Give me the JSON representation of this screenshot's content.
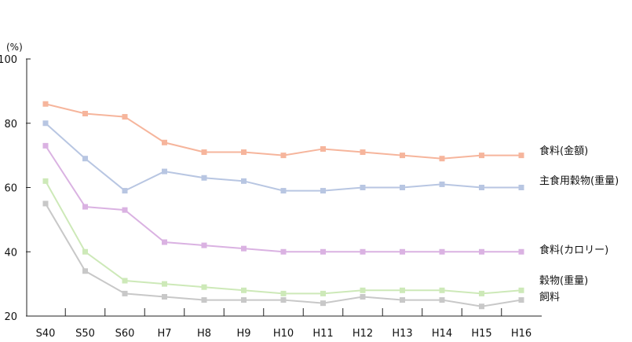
{
  "chart_data": {
    "type": "line",
    "title": "",
    "xlabel": "",
    "ylabel": "(%)",
    "ylim": [
      20,
      100
    ],
    "yticks": [
      "20",
      "40",
      "60",
      "80",
      "100"
    ],
    "grid": false,
    "legend": "direct labels at right end of lines",
    "categories": [
      "S40",
      "S50",
      "S60",
      "H7",
      "H8",
      "H9",
      "H10",
      "H11",
      "H12",
      "H13",
      "H14",
      "H15",
      "H16"
    ],
    "series": [
      {
        "name": "食料(金額)",
        "color": "#f6b59c",
        "values": [
          86,
          83,
          82,
          74,
          71,
          71,
          70,
          72,
          71,
          70,
          69,
          70,
          70
        ]
      },
      {
        "name": "主食用穀物(重量)",
        "color": "#b8c6e2",
        "values": [
          80,
          69,
          59,
          65,
          63,
          62,
          59,
          59,
          60,
          60,
          61,
          60,
          60
        ]
      },
      {
        "name": "食料(カロリー)",
        "color": "#dab2e2",
        "values": [
          73,
          54,
          53,
          43,
          42,
          41,
          40,
          40,
          40,
          40,
          40,
          40,
          40
        ]
      },
      {
        "name": "穀物(重量)",
        "color": "#cde9b8",
        "values": [
          62,
          40,
          31,
          30,
          29,
          28,
          27,
          27,
          28,
          28,
          28,
          27,
          28
        ]
      },
      {
        "name": "飼料",
        "color": "#c8c8c8",
        "values": [
          55,
          34,
          27,
          26,
          25,
          25,
          25,
          24,
          26,
          25,
          25,
          23,
          25
        ]
      }
    ]
  }
}
